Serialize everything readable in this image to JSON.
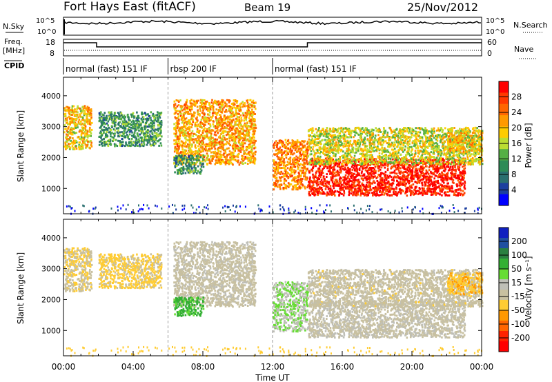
{
  "header": {
    "station": "Fort Hays East (fitACF)",
    "beam": "Beam 19",
    "date": "25/Nov/2012"
  },
  "left_labels": {
    "nsky": "N.Sky",
    "freq_line1": "Freq.",
    "freq_line2": "[MHz]",
    "cpid": "CPID"
  },
  "right_labels": {
    "nsearch": "N.Search",
    "nave": "Nave"
  },
  "noise_axis_ticks": [
    "10^5",
    "10^0"
  ],
  "freq_axis_ticks": [
    "18",
    "8"
  ],
  "nave_axis_ticks": [
    "60",
    "0"
  ],
  "cpid_segments": [
    {
      "label": "normal (fast) 151 IF",
      "start_h": 0,
      "end_h": 6.0
    },
    {
      "label": "rbsp 200 IF",
      "start_h": 6.0,
      "end_h": 12.0
    },
    {
      "label": "normal (fast) 151 IF",
      "start_h": 12.0,
      "end_h": 24.0
    }
  ],
  "freq_steps": [
    {
      "start_h": 0,
      "end_h": 1.9,
      "level": "high"
    },
    {
      "start_h": 1.9,
      "end_h": 14.0,
      "level": "low"
    },
    {
      "start_h": 14.0,
      "end_h": 24.0,
      "level": "high"
    }
  ],
  "xlabel": "Time UT",
  "ylabel": "Slant Range [km]",
  "power_label": "Power [dB]",
  "velocity_label": "Velocity [m s⁻¹]",
  "power_colorbar": {
    "ticks": [
      "28",
      "24",
      "20",
      "16",
      "12",
      "8",
      "4"
    ],
    "colors": [
      "#ff0000",
      "#ff3a00",
      "#ff6600",
      "#ff9900",
      "#ffcc00",
      "#bbdd33",
      "#55b045",
      "#2e8b57",
      "#2a6f6f",
      "#1c3f9f",
      "#0000ff"
    ]
  },
  "velocity_colorbar": {
    "ticks": [
      "200",
      "100",
      "50",
      "15",
      "-15",
      "-50",
      "-100",
      "-200"
    ],
    "colors": [
      "#1020c0",
      "#2050a0",
      "#2a8040",
      "#33b033",
      "#66dd33",
      "#bfbfb7",
      "#c8c0a0",
      "#ffcc33",
      "#ff9900",
      "#ff6600",
      "#ff2200",
      "#ff0000"
    ]
  },
  "chart_data": {
    "type": "heatmap",
    "title": "Fort Hays East (fitACF)  Beam 19  25/Nov/2012",
    "xlabel": "Time UT",
    "ylabel": "Slant Range [km]",
    "x_ticks": [
      "00:00",
      "04:00",
      "08:00",
      "12:00",
      "16:00",
      "20:00",
      "00:00"
    ],
    "xlim_hours": [
      0,
      24
    ],
    "y_ticks": [
      1000,
      2000,
      3000,
      4000
    ],
    "ylim_km": [
      180,
      4600
    ],
    "panels": [
      {
        "name": "Power [dB]",
        "range": [
          0,
          30
        ]
      },
      {
        "name": "Velocity [m s⁻¹]",
        "range": [
          -200,
          200
        ]
      }
    ],
    "echo_regions": [
      {
        "start_h": 0.0,
        "end_h": 1.6,
        "range_km": [
          2300,
          3700
        ],
        "power_db": 18,
        "velocity": -30
      },
      {
        "start_h": 2.0,
        "end_h": 5.6,
        "range_km": [
          2400,
          3500
        ],
        "power_db": 10,
        "velocity": -40
      },
      {
        "start_h": 6.3,
        "end_h": 11.0,
        "range_km": [
          1800,
          3900
        ],
        "power_db": 20,
        "velocity": -10
      },
      {
        "start_h": 6.3,
        "end_h": 8.0,
        "range_km": [
          1500,
          2100
        ],
        "power_db": 10,
        "velocity": 80
      },
      {
        "start_h": 12.0,
        "end_h": 14.0,
        "range_km": [
          1000,
          2600
        ],
        "power_db": 22,
        "velocity": 30
      },
      {
        "start_h": 14.0,
        "end_h": 23.0,
        "range_km": [
          800,
          2000
        ],
        "power_db": 28,
        "velocity": -5
      },
      {
        "start_h": 14.0,
        "end_h": 24.0,
        "range_km": [
          1800,
          3000
        ],
        "power_db": 16,
        "velocity": -15
      },
      {
        "start_h": 22.0,
        "end_h": 24.0,
        "range_km": [
          2200,
          2900
        ],
        "power_db": 18,
        "velocity": -60
      }
    ]
  }
}
